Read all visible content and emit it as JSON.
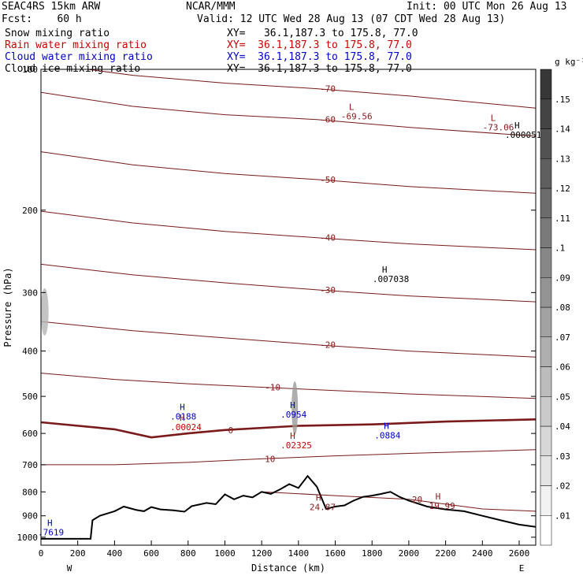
{
  "header": {
    "line1_left": "SEAC4RS 15km ARW",
    "line1_mid": "NCAR/MMM",
    "line1_right": "Init: 00 UTC Mon 26 Aug 13",
    "fcst": "Fcst:    60 h",
    "valid": "Valid: 12 UTC Wed 28 Aug 13 (07 CDT Wed 28 Aug 13)",
    "fields": [
      {
        "label": "Snow mixing ratio",
        "xy": "XY=   36.1,187.3 to 175.8, 77.0",
        "color": "#000000"
      },
      {
        "label": "Rain water mixing ratio",
        "xy": "XY=  36.1,187.3 to 175.8, 77.0",
        "color": "#cc0000"
      },
      {
        "label": "Cloud water mixing ratio",
        "xy": "XY=  36.1,187.3 to 175.8, 77.0",
        "color": "#0000cc"
      },
      {
        "label": "Cloud ice mixing ratio",
        "xy": "XY=  36.1,187.3 to 175.8, 77.0",
        "color": "#000000"
      }
    ]
  },
  "colorbar": {
    "unit": "g kg⁻¹",
    "labels": [
      ".01",
      ".02",
      ".03",
      ".04",
      ".05",
      ".06",
      ".07",
      ".08",
      ".09",
      ".1",
      ".11",
      ".12",
      ".13",
      ".14",
      ".15"
    ]
  },
  "chart_data": {
    "type": "vertical cross-section (contour)",
    "xlabel": "Distance (km)",
    "ylabel": "Pressure (hPa)",
    "xlim": [
      0,
      2690
    ],
    "ylim": [
      1040,
      100
    ],
    "y_scale": "log",
    "x_ticks": [
      0,
      200,
      400,
      600,
      800,
      1000,
      1200,
      1400,
      1600,
      1800,
      2000,
      2200,
      2400,
      2600
    ],
    "y_ticks": [
      100,
      200,
      300,
      400,
      500,
      600,
      700,
      800,
      900,
      1000
    ],
    "x_end_labels": {
      "left": "W",
      "right": "E"
    },
    "temperature_contours": [
      {
        "value": -70,
        "points": [
          [
            0,
            97
          ],
          [
            500,
            103
          ],
          [
            1000,
            107
          ],
          [
            1500,
            110
          ],
          [
            2000,
            114
          ],
          [
            2690,
            121
          ]
        ]
      },
      {
        "value": -60,
        "points": [
          [
            0,
            112
          ],
          [
            500,
            120
          ],
          [
            1000,
            125
          ],
          [
            1500,
            128
          ],
          [
            2000,
            133
          ],
          [
            2690,
            139
          ]
        ]
      },
      {
        "value": -50,
        "points": [
          [
            0,
            150
          ],
          [
            500,
            160
          ],
          [
            1000,
            167
          ],
          [
            1500,
            172
          ],
          [
            2000,
            178
          ],
          [
            2690,
            184
          ]
        ]
      },
      {
        "value": -40,
        "points": [
          [
            0,
            201
          ],
          [
            500,
            213
          ],
          [
            1000,
            222
          ],
          [
            1500,
            229
          ],
          [
            2000,
            236
          ],
          [
            2690,
            243
          ]
        ]
      },
      {
        "value": -30,
        "points": [
          [
            0,
            261
          ],
          [
            500,
            275
          ],
          [
            1000,
            286
          ],
          [
            1500,
            296
          ],
          [
            2000,
            305
          ],
          [
            2690,
            314
          ]
        ]
      },
      {
        "value": -20,
        "points": [
          [
            0,
            346
          ],
          [
            500,
            362
          ],
          [
            1000,
            375
          ],
          [
            1500,
            388
          ],
          [
            2000,
            400
          ],
          [
            2690,
            412
          ]
        ]
      },
      {
        "value": -10,
        "points": [
          [
            0,
            446
          ],
          [
            400,
            460
          ],
          [
            800,
            470
          ],
          [
            1200,
            478
          ],
          [
            1600,
            486
          ],
          [
            2000,
            494
          ],
          [
            2690,
            505
          ]
        ]
      },
      {
        "value": 0,
        "points": [
          [
            0,
            568
          ],
          [
            400,
            588
          ],
          [
            600,
            612
          ],
          [
            800,
            600
          ],
          [
            1000,
            590
          ],
          [
            1400,
            578
          ],
          [
            1800,
            574
          ],
          [
            2200,
            566
          ],
          [
            2690,
            560
          ]
        ]
      },
      {
        "value": 10,
        "points": [
          [
            0,
            700
          ],
          [
            400,
            700
          ],
          [
            800,
            692
          ],
          [
            1200,
            680
          ],
          [
            1600,
            670
          ],
          [
            2000,
            662
          ],
          [
            2690,
            650
          ]
        ]
      },
      {
        "value": 20,
        "points": [
          [
            1200,
            800
          ],
          [
            1600,
            815
          ],
          [
            2000,
            830
          ],
          [
            2400,
            870
          ],
          [
            2690,
            880
          ]
        ]
      }
    ],
    "terrain_pressure": [
      [
        0,
        1008
      ],
      [
        270,
        1008
      ],
      [
        280,
        920
      ],
      [
        320,
        900
      ],
      [
        400,
        880
      ],
      [
        450,
        860
      ],
      [
        520,
        875
      ],
      [
        560,
        880
      ],
      [
        600,
        862
      ],
      [
        650,
        872
      ],
      [
        720,
        876
      ],
      [
        780,
        882
      ],
      [
        820,
        858
      ],
      [
        900,
        845
      ],
      [
        950,
        850
      ],
      [
        1000,
        810
      ],
      [
        1050,
        830
      ],
      [
        1100,
        815
      ],
      [
        1150,
        822
      ],
      [
        1200,
        800
      ],
      [
        1250,
        808
      ],
      [
        1300,
        790
      ],
      [
        1350,
        770
      ],
      [
        1400,
        785
      ],
      [
        1450,
        740
      ],
      [
        1500,
        780
      ],
      [
        1550,
        870
      ],
      [
        1600,
        860
      ],
      [
        1650,
        855
      ],
      [
        1700,
        835
      ],
      [
        1750,
        820
      ],
      [
        1800,
        815
      ],
      [
        1850,
        808
      ],
      [
        1900,
        800
      ],
      [
        1950,
        820
      ],
      [
        2000,
        835
      ],
      [
        2100,
        860
      ],
      [
        2200,
        872
      ],
      [
        2300,
        880
      ],
      [
        2400,
        900
      ],
      [
        2500,
        920
      ],
      [
        2600,
        940
      ],
      [
        2690,
        950
      ]
    ],
    "mixing_ratio_maxima": [
      {
        "field": "cloud_water",
        "x": 780,
        "p": 560,
        "label": ".0188"
      },
      {
        "field": "rain_water",
        "x": 780,
        "p": 590,
        "label": ".00024"
      },
      {
        "field": "cloud_water",
        "x": 1380,
        "p": 555,
        "label": ".0954"
      },
      {
        "field": "rain_water",
        "x": 1380,
        "p": 645,
        "label": ".02325"
      },
      {
        "field": "cloud_water",
        "x": 1890,
        "p": 615,
        "label": ".0884"
      },
      {
        "field": "cloud_ice",
        "x": 1880,
        "p": 285,
        "label": ".007038"
      },
      {
        "field": "cloud_ice",
        "x": 2600,
        "p": 140,
        "label": ".000051"
      },
      {
        "field": "cloud_water",
        "x": 60,
        "p": 990,
        "label": ".7619"
      }
    ],
    "temperature_maxima": [
      {
        "x": 1520,
        "p": 875,
        "label": "24.87"
      },
      {
        "x": 2170,
        "p": 870,
        "label": "19.99"
      }
    ],
    "temperature_minima": [
      {
        "x": 2470,
        "p": 135,
        "label": "-73.06"
      },
      {
        "x": 1700,
        "p": 128,
        "label": "-69.56"
      }
    ]
  }
}
